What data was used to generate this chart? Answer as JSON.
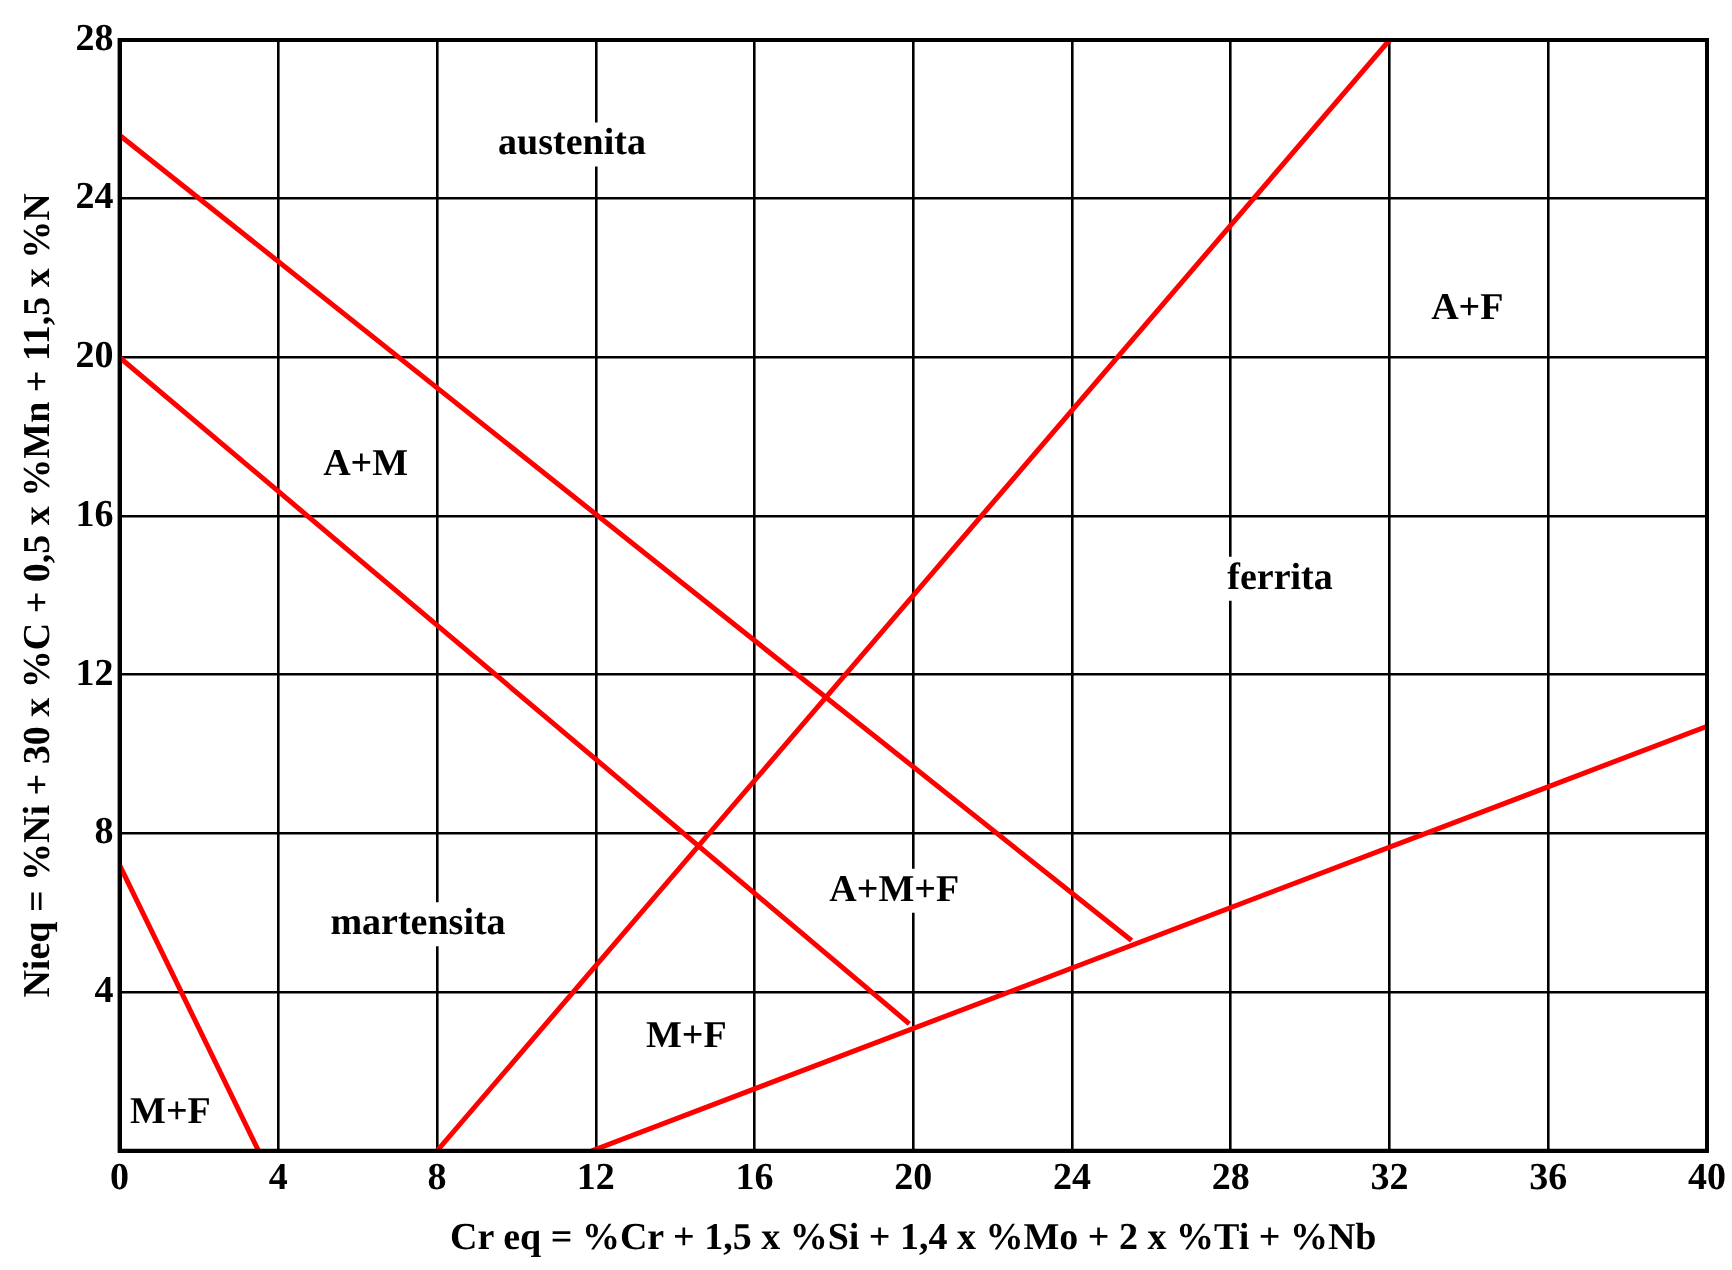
{
  "chart_data": {
    "type": "line",
    "xlabel": "Cr eq = %Cr + 1,5 x %Si + 1,4 x %Mo + 2 x %Ti + %Nb",
    "ylabel": "Nieq = %Ni + 30 x %C + 0,5 x %Mn + 11,5 x %N",
    "xlim": [
      0,
      40
    ],
    "xticks": [
      0,
      4,
      8,
      12,
      16,
      20,
      24,
      28,
      32,
      36,
      40
    ],
    "ylim": [
      0,
      28
    ],
    "yticks": [
      {
        "value": 0,
        "label": null
      },
      4,
      8,
      12,
      16,
      20,
      24,
      28
    ],
    "grid": true,
    "legend": false,
    "marker": "none",
    "line_style": "solid",
    "series": [
      {
        "color": "#ff0000",
        "x": [
          0,
          25.5
        ],
        "values": [
          25.6,
          5.3
        ]
      },
      {
        "color": "#ff0000",
        "x": [
          0,
          19.9
        ],
        "values": [
          20,
          3.2
        ]
      },
      {
        "color": "#ff0000",
        "x": [
          8,
          32
        ],
        "values": [
          0,
          28
        ]
      },
      {
        "color": "#ff0000",
        "x": [
          11.9,
          40
        ],
        "values": [
          0,
          10.7
        ]
      },
      {
        "color": "#ff0000",
        "x": [
          0,
          3.5
        ],
        "values": [
          7.2,
          0
        ]
      }
    ],
    "annotations": [
      "austenita",
      "A+F",
      "A+M",
      "ferrita",
      "A+M+F",
      "martensita",
      "M+F",
      "M+F"
    ]
  }
}
